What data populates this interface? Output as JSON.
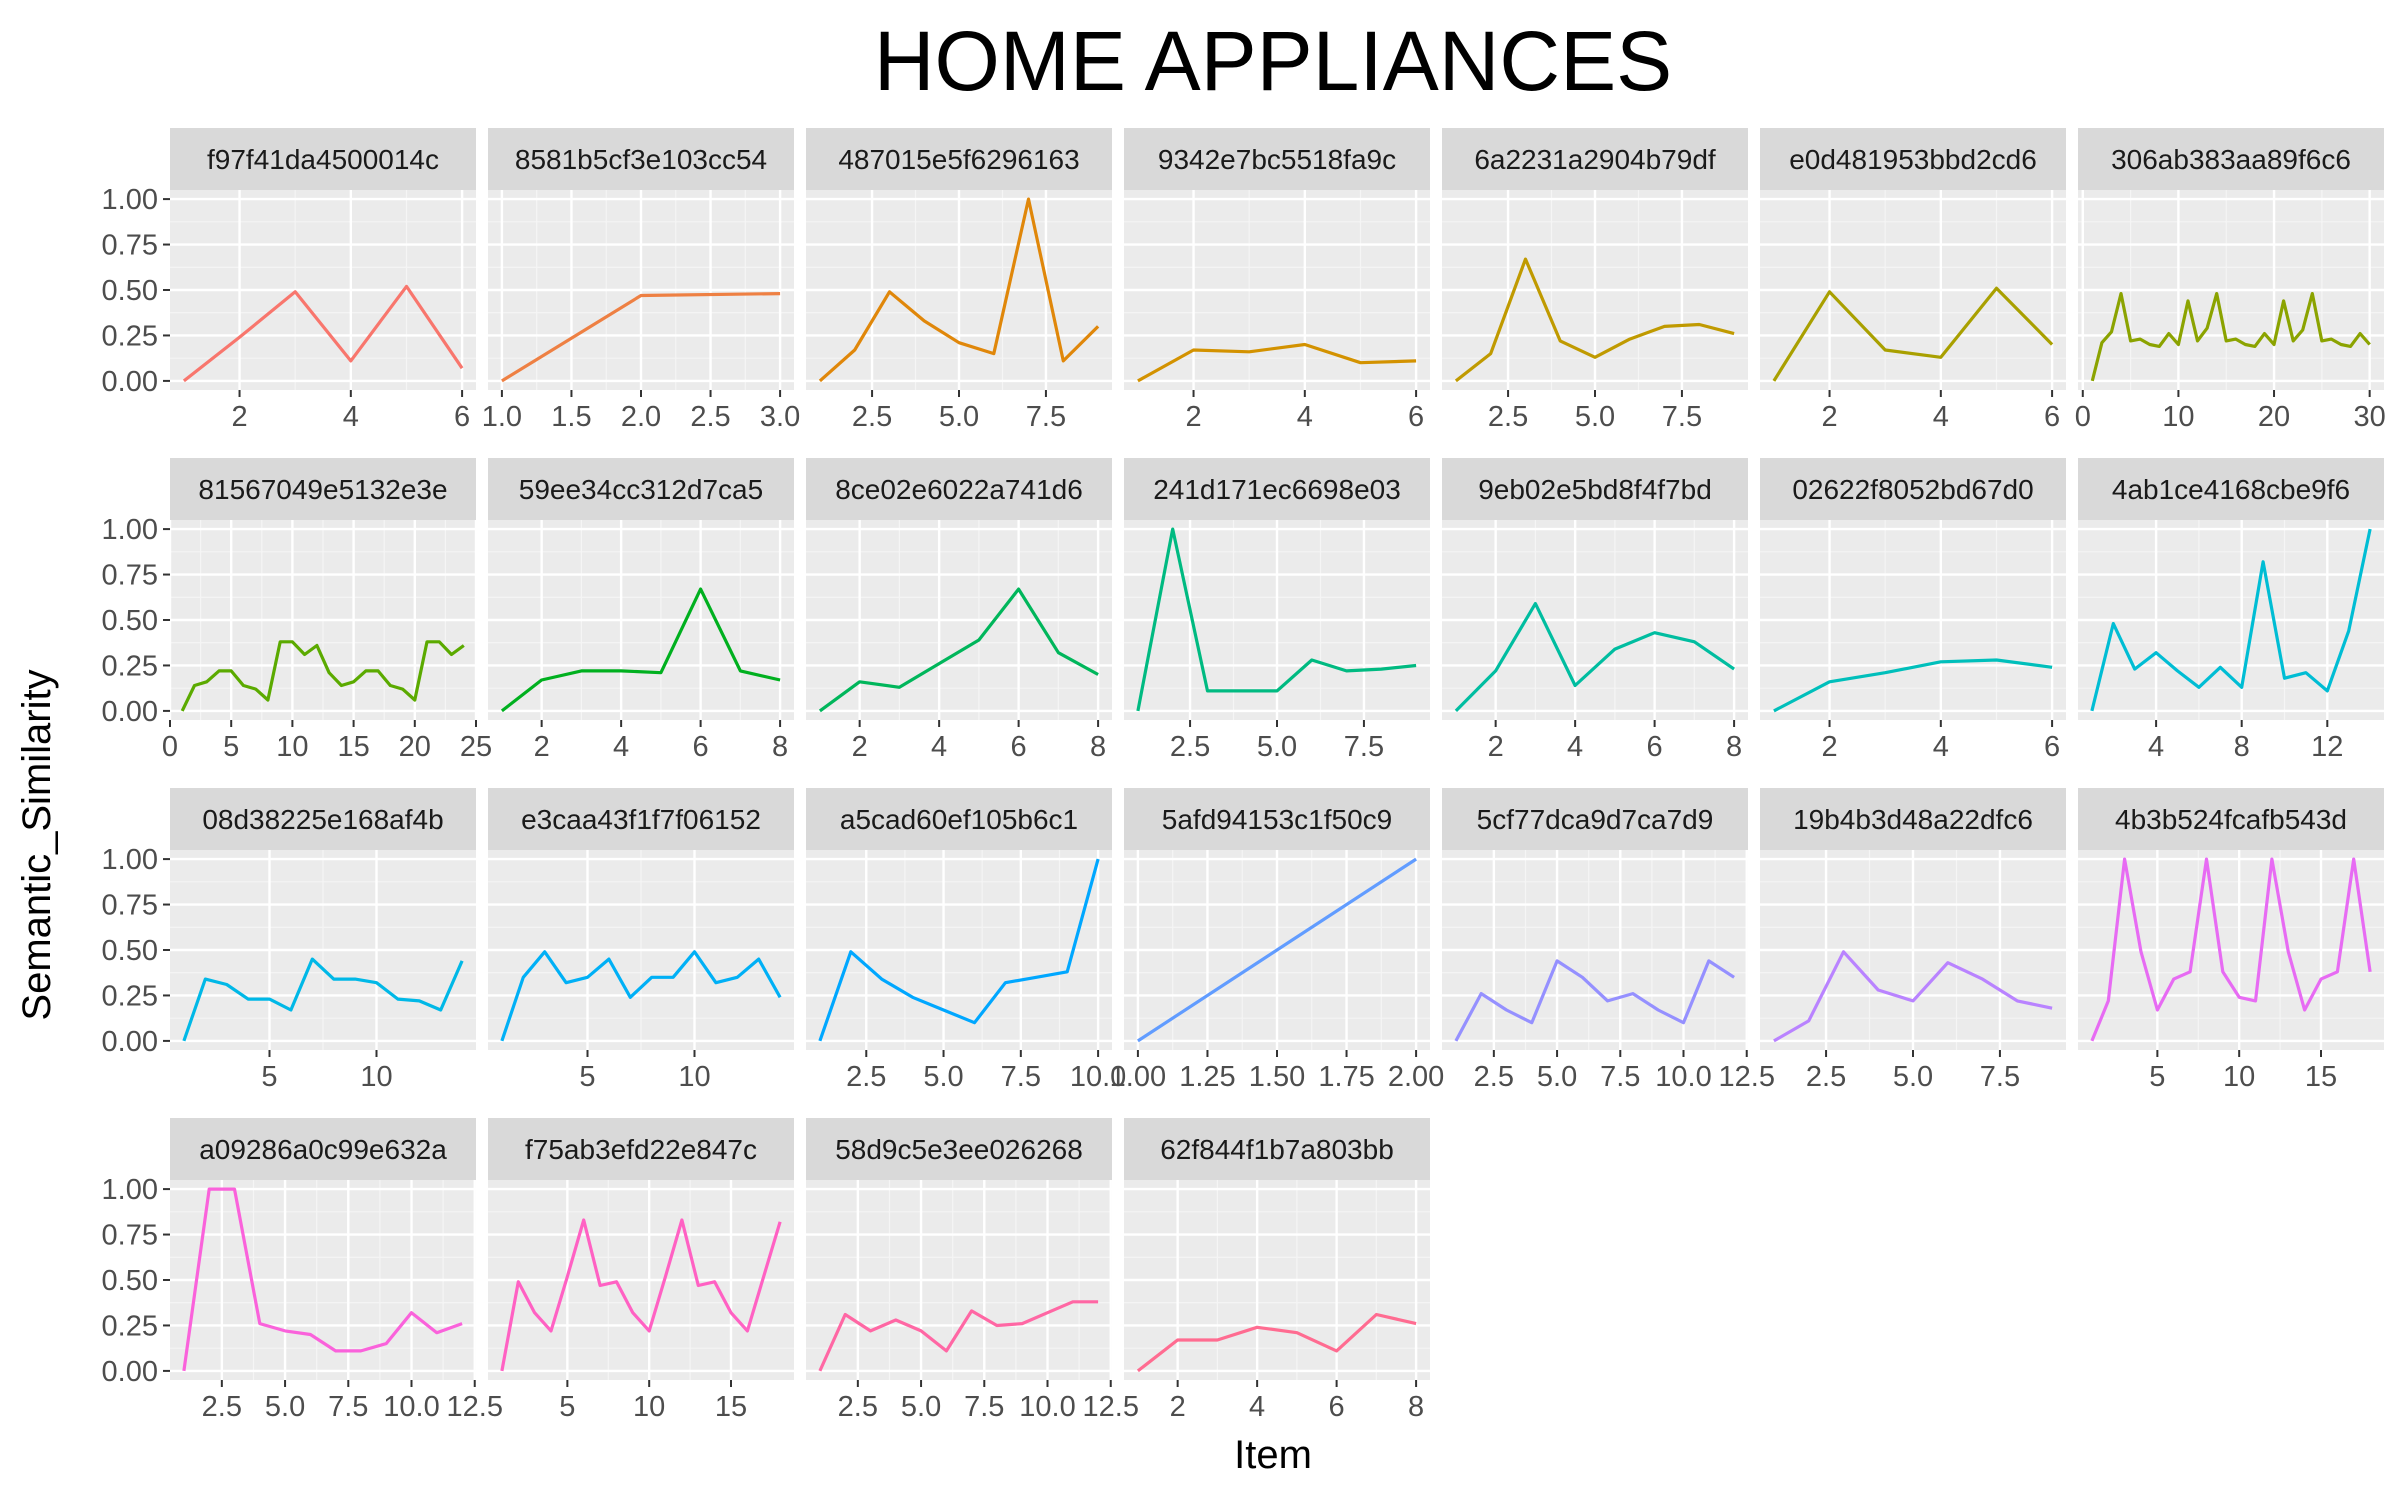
{
  "chart_data": {
    "type": "line",
    "title": "HOME APPLIANCES",
    "xlabel": "Item",
    "ylabel": "Semantic_Similarity",
    "ylim": [
      0,
      1
    ],
    "y_ticks": [
      "0.00",
      "0.25",
      "0.50",
      "0.75",
      "1.00"
    ],
    "grid": true,
    "legend": "none",
    "facet_layout": "wrap, 4 rows x 7 columns, free x scales",
    "facets": [
      {
        "label": "f97f41da4500014c",
        "color": "#F8766D",
        "x_ticks": [
          "2",
          "4",
          "6"
        ],
        "xlim": [
          0.75,
          6.25
        ],
        "x": [
          1,
          2,
          3,
          4,
          5,
          6
        ],
        "y": [
          0.0,
          0.24,
          0.49,
          0.11,
          0.52,
          0.07
        ]
      },
      {
        "label": "8581b5cf3e103cc54",
        "color": "#EE8043",
        "x_ticks": [
          "1.0",
          "1.5",
          "2.0",
          "2.5",
          "3.0"
        ],
        "xlim": [
          0.9,
          3.1
        ],
        "x": [
          1,
          2,
          3
        ],
        "y": [
          0.0,
          0.47,
          0.48
        ]
      },
      {
        "label": "487015e5f6296163",
        "color": "#E0870A",
        "x_ticks": [
          "2.5",
          "5.0",
          "7.5"
        ],
        "xlim": [
          0.6,
          9.4
        ],
        "x": [
          1,
          2,
          3,
          4,
          5,
          6,
          7,
          8,
          9
        ],
        "y": [
          0.0,
          0.17,
          0.49,
          0.33,
          0.21,
          0.15,
          1.0,
          0.11,
          0.3
        ]
      },
      {
        "label": "9342e7bc5518fa9c",
        "color": "#D39200",
        "x_ticks": [
          "2",
          "4",
          "6"
        ],
        "xlim": [
          0.75,
          6.25
        ],
        "x": [
          1,
          2,
          3,
          4,
          5,
          6
        ],
        "y": [
          0.0,
          0.17,
          0.16,
          0.2,
          0.1,
          0.11
        ]
      },
      {
        "label": "6a2231a2904b79df",
        "color": "#C09A00",
        "x_ticks": [
          "2.5",
          "5.0",
          "7.5"
        ],
        "xlim": [
          0.6,
          9.4
        ],
        "x": [
          1,
          2,
          3,
          4,
          5,
          6,
          7,
          8,
          9
        ],
        "y": [
          0.0,
          0.15,
          0.67,
          0.22,
          0.13,
          0.23,
          0.3,
          0.31,
          0.26
        ]
      },
      {
        "label": "e0d481953bbd2cd6",
        "color": "#A9A000",
        "x_ticks": [
          "2",
          "4",
          "6"
        ],
        "xlim": [
          0.75,
          6.25
        ],
        "x": [
          1,
          2,
          3,
          4,
          5,
          6
        ],
        "y": [
          0.0,
          0.49,
          0.17,
          0.13,
          0.51,
          0.2
        ]
      },
      {
        "label": "306ab383aa89f6c6",
        "color": "#8BA300",
        "x_ticks": [
          "0",
          "10",
          "20",
          "30"
        ],
        "xlim": [
          -0.5,
          31.5
        ],
        "x": [
          1,
          2,
          3,
          4,
          5,
          6,
          7,
          8,
          9,
          10,
          11,
          12,
          13,
          14,
          15,
          16,
          17,
          18,
          19,
          20,
          21,
          22,
          23,
          24,
          25,
          26,
          27,
          28,
          29,
          30
        ],
        "y": [
          0.0,
          0.21,
          0.27,
          0.48,
          0.22,
          0.23,
          0.2,
          0.19,
          0.26,
          0.2,
          0.44,
          0.22,
          0.29,
          0.48,
          0.22,
          0.23,
          0.2,
          0.19,
          0.26,
          0.2,
          0.44,
          0.22,
          0.28,
          0.48,
          0.22,
          0.23,
          0.2,
          0.19,
          0.26,
          0.2
        ]
      },
      {
        "label": "81567049e5132e3e",
        "color": "#5BAA00",
        "x_ticks": [
          "0",
          "5",
          "10",
          "15",
          "20",
          "25"
        ],
        "xlim": [
          0,
          25
        ],
        "x": [
          1,
          2,
          3,
          4,
          5,
          6,
          7,
          8,
          9,
          10,
          11,
          12,
          13,
          14,
          15,
          16,
          17,
          18,
          19,
          20,
          21,
          22,
          23,
          24
        ],
        "y": [
          0.0,
          0.14,
          0.16,
          0.22,
          0.22,
          0.14,
          0.12,
          0.06,
          0.38,
          0.38,
          0.31,
          0.36,
          0.21,
          0.14,
          0.16,
          0.22,
          0.22,
          0.14,
          0.12,
          0.06,
          0.38,
          0.38,
          0.31,
          0.36
        ]
      },
      {
        "label": "59ee34cc312d7ca5",
        "color": "#00B01F",
        "x_ticks": [
          "2",
          "4",
          "6",
          "8"
        ],
        "xlim": [
          0.65,
          8.35
        ],
        "x": [
          1,
          2,
          3,
          4,
          5,
          6,
          7,
          8
        ],
        "y": [
          0.0,
          0.17,
          0.22,
          0.22,
          0.21,
          0.67,
          0.22,
          0.17
        ]
      },
      {
        "label": "8ce02e6022a741d6",
        "color": "#00B65B",
        "x_ticks": [
          "2",
          "4",
          "6",
          "8"
        ],
        "xlim": [
          0.65,
          8.35
        ],
        "x": [
          1,
          2,
          3,
          4,
          5,
          6,
          7,
          8
        ],
        "y": [
          0.0,
          0.16,
          0.13,
          0.26,
          0.39,
          0.67,
          0.32,
          0.2
        ]
      },
      {
        "label": "241d171ec6698e03",
        "color": "#00BA81",
        "x_ticks": [
          "2.5",
          "5.0",
          "7.5"
        ],
        "xlim": [
          0.6,
          9.4
        ],
        "x": [
          1,
          2,
          3,
          4,
          5,
          6,
          7,
          8,
          9
        ],
        "y": [
          0.0,
          1.0,
          0.11,
          0.11,
          0.11,
          0.28,
          0.22,
          0.23,
          0.25
        ]
      },
      {
        "label": "9eb02e5bd8f4f7bd",
        "color": "#00BDA0",
        "x_ticks": [
          "2",
          "4",
          "6",
          "8"
        ],
        "xlim": [
          0.65,
          8.35
        ],
        "x": [
          1,
          2,
          3,
          4,
          5,
          6,
          7,
          8
        ],
        "y": [
          0.0,
          0.22,
          0.59,
          0.14,
          0.34,
          0.43,
          0.38,
          0.23
        ]
      },
      {
        "label": "02622f8052bd67d0",
        "color": "#00BFBB",
        "x_ticks": [
          "2",
          "4",
          "6"
        ],
        "xlim": [
          0.75,
          6.25
        ],
        "x": [
          1,
          2,
          3,
          4,
          5,
          6
        ],
        "y": [
          0.0,
          0.16,
          0.21,
          0.27,
          0.28,
          0.24
        ]
      },
      {
        "label": "4ab1ce4168cbe9f6",
        "color": "#00BDD4",
        "x_ticks": [
          "4",
          "8",
          "12"
        ],
        "xlim": [
          0.35,
          14.65
        ],
        "x": [
          1,
          2,
          3,
          4,
          5,
          6,
          7,
          8,
          9,
          10,
          11,
          12,
          13,
          14
        ],
        "y": [
          0.0,
          0.48,
          0.23,
          0.32,
          0.22,
          0.13,
          0.24,
          0.13,
          0.82,
          0.18,
          0.21,
          0.11,
          0.44,
          1.0
        ]
      },
      {
        "label": "08d38225e168af4b",
        "color": "#00B8E7",
        "x_ticks": [
          "5",
          "10"
        ],
        "xlim": [
          0.35,
          14.65
        ],
        "x": [
          1,
          2,
          3,
          4,
          5,
          6,
          7,
          8,
          9,
          10,
          11,
          12,
          13,
          14
        ],
        "y": [
          0.0,
          0.34,
          0.31,
          0.23,
          0.23,
          0.17,
          0.45,
          0.34,
          0.34,
          0.32,
          0.23,
          0.22,
          0.17,
          0.44
        ]
      },
      {
        "label": "e3caa43f1f7f06152",
        "color": "#00B0F6",
        "x_ticks": [
          "5",
          "10"
        ],
        "xlim": [
          0.35,
          14.65
        ],
        "x": [
          1,
          2,
          3,
          4,
          5,
          6,
          7,
          8,
          9,
          10,
          11,
          12,
          13,
          14
        ],
        "y": [
          0.0,
          0.35,
          0.49,
          0.32,
          0.35,
          0.45,
          0.24,
          0.35,
          0.35,
          0.49,
          0.32,
          0.35,
          0.45,
          0.24
        ]
      },
      {
        "label": "a5cad60ef105b6c1",
        "color": "#00A7FF",
        "x_ticks": [
          "2.5",
          "5.0",
          "7.5",
          "10.0"
        ],
        "xlim": [
          0.55,
          10.45
        ],
        "x": [
          1,
          2,
          3,
          4,
          5,
          6,
          7,
          8,
          9,
          10
        ],
        "y": [
          0.0,
          0.49,
          0.34,
          0.24,
          0.17,
          0.1,
          0.32,
          0.35,
          0.38,
          1.0
        ]
      },
      {
        "label": "5afd94153c1f50c9",
        "color": "#619CFF",
        "x_ticks": [
          "1.00",
          "1.25",
          "1.50",
          "1.75",
          "2.00"
        ],
        "xlim": [
          0.95,
          2.05
        ],
        "x": [
          1,
          2
        ],
        "y": [
          0.0,
          1.0
        ]
      },
      {
        "label": "5cf77dca9d7ca7d9",
        "color": "#9590FF",
        "x_ticks": [
          "2.5",
          "5.0",
          "7.5",
          "10.0",
          "12.5"
        ],
        "xlim": [
          0.45,
          12.55
        ],
        "x": [
          1,
          2,
          3,
          4,
          5,
          6,
          7,
          8,
          9,
          10,
          11,
          12
        ],
        "y": [
          0.0,
          0.26,
          0.17,
          0.1,
          0.44,
          0.35,
          0.22,
          0.26,
          0.17,
          0.1,
          0.44,
          0.35
        ]
      },
      {
        "label": "19b4b3d48a22dfc6",
        "color": "#B983FF",
        "x_ticks": [
          "2.5",
          "5.0",
          "7.5"
        ],
        "xlim": [
          0.6,
          9.4
        ],
        "x": [
          1,
          2,
          3,
          4,
          5,
          6,
          7,
          8,
          9
        ],
        "y": [
          0.0,
          0.11,
          0.49,
          0.28,
          0.22,
          0.43,
          0.34,
          0.22,
          0.18
        ]
      },
      {
        "label": "4b3b524fcafb543d",
        "color": "#E76BF3",
        "x_ticks": [
          "5",
          "10",
          "15"
        ],
        "xlim": [
          0.15,
          18.85
        ],
        "x": [
          1,
          2,
          3,
          4,
          5,
          6,
          7,
          8,
          9,
          10,
          11,
          12,
          13,
          14,
          15,
          16,
          17,
          18
        ],
        "y": [
          0.0,
          0.22,
          1.0,
          0.49,
          0.17,
          0.34,
          0.38,
          1.0,
          0.38,
          0.24,
          0.22,
          1.0,
          0.49,
          0.17,
          0.34,
          0.38,
          1.0,
          0.38
        ]
      },
      {
        "label": "a09286a0c99e632a",
        "color": "#FA62DB",
        "x_ticks": [
          "2.5",
          "5.0",
          "7.5",
          "10.0",
          "12.5"
        ],
        "xlim": [
          0.45,
          12.55
        ],
        "x": [
          1,
          2,
          3,
          4,
          5,
          6,
          7,
          8,
          9,
          10,
          11,
          12
        ],
        "y": [
          0.0,
          1.0,
          1.0,
          0.26,
          0.22,
          0.2,
          0.11,
          0.11,
          0.15,
          0.32,
          0.21,
          0.26
        ]
      },
      {
        "label": "f75ab3efd22e847c",
        "color": "#FF61C3",
        "x_ticks": [
          "5",
          "10",
          "15"
        ],
        "xlim": [
          0.15,
          18.85
        ],
        "x": [
          1,
          2,
          3,
          4,
          5,
          6,
          7,
          8,
          9,
          10,
          11,
          12,
          13,
          14,
          15,
          16,
          17,
          18
        ],
        "y": [
          0.0,
          0.49,
          0.32,
          0.22,
          0.52,
          0.83,
          0.47,
          0.49,
          0.32,
          0.22,
          0.52,
          0.83,
          0.47,
          0.49,
          0.32,
          0.22,
          0.52,
          0.82
        ]
      },
      {
        "label": "58d9c5e3ee026268",
        "color": "#FF67A4",
        "x_ticks": [
          "2.5",
          "5.0",
          "7.5",
          "10.0",
          "12.5"
        ],
        "xlim": [
          0.45,
          12.55
        ],
        "x": [
          1,
          2,
          3,
          4,
          5,
          6,
          7,
          8,
          9,
          10,
          11,
          12
        ],
        "y": [
          0.0,
          0.31,
          0.22,
          0.28,
          0.22,
          0.11,
          0.33,
          0.25,
          0.26,
          0.32,
          0.38,
          0.38
        ]
      },
      {
        "label": "62f844f1b7a803bb",
        "color": "#FF6C91",
        "x_ticks": [
          "2",
          "4",
          "6",
          "8"
        ],
        "xlim": [
          0.65,
          8.35
        ],
        "x": [
          1,
          2,
          3,
          4,
          5,
          6,
          7,
          8
        ],
        "y": [
          0.0,
          0.17,
          0.17,
          0.24,
          0.21,
          0.11,
          0.31,
          0.26
        ]
      }
    ]
  }
}
